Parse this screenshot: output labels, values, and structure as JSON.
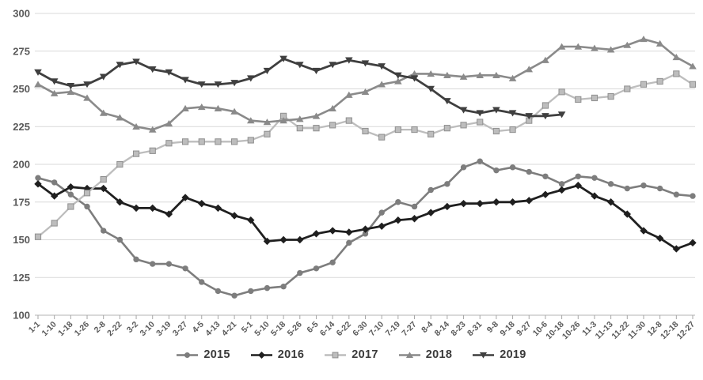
{
  "chart_data": {
    "type": "line",
    "title": "",
    "legend_position": "bottom-center",
    "grid": "horizontal",
    "colors": {
      "background": "#ffffff",
      "gridline": "#d9d9d9",
      "axis_line": "#b3b3b3",
      "tick": "#a6a6a6",
      "axis_text": "#595959",
      "legend_text": "#3a3a3a"
    },
    "y_axis": {
      "min": 100,
      "max": 300,
      "step": 25,
      "tick_labels": [
        "300",
        "275",
        "250",
        "225",
        "200",
        "175",
        "150",
        "125",
        "100"
      ]
    },
    "x_categories": [
      "1-1",
      "1-10",
      "1-18",
      "1-26",
      "2-8",
      "2-22",
      "3-2",
      "3-10",
      "3-19",
      "3-27",
      "4-5",
      "4-13",
      "4-21",
      "5-1",
      "5-10",
      "5-18",
      "5-26",
      "6-5",
      "6-14",
      "6-22",
      "6-30",
      "7-10",
      "7-19",
      "7-27",
      "8-4",
      "8-14",
      "8-23",
      "8-31",
      "9-8",
      "9-18",
      "9-27",
      "10-6",
      "10-18",
      "10-26",
      "11-3",
      "11-13",
      "11-22",
      "11-30",
      "12-8",
      "12-18",
      "12-27"
    ],
    "series": [
      {
        "name": "2015",
        "marker": "circle",
        "color": "#7d7d7d",
        "values": [
          191,
          188,
          180,
          172,
          156,
          150,
          137,
          134,
          134,
          131,
          122,
          116,
          113,
          116,
          118,
          119,
          128,
          131,
          135,
          148,
          154,
          168,
          175,
          172,
          183,
          187,
          198,
          202,
          196,
          198,
          195,
          192,
          187,
          192,
          191,
          187,
          184,
          186,
          184,
          180,
          179
        ]
      },
      {
        "name": "2016",
        "marker": "diamond",
        "color": "#1f1f1f",
        "values": [
          187,
          179,
          185,
          184,
          184,
          175,
          171,
          171,
          167,
          178,
          174,
          171,
          166,
          163,
          149,
          150,
          150,
          154,
          156,
          155,
          157,
          159,
          163,
          164,
          168,
          172,
          174,
          174,
          175,
          175,
          176,
          180,
          183,
          186,
          179,
          175,
          167,
          156,
          151,
          144,
          148
        ]
      },
      {
        "name": "2017",
        "marker": "square",
        "color": "#bdbdbd",
        "marker_border": "#8f8f8f",
        "values": [
          152,
          161,
          172,
          181,
          190,
          200,
          207,
          209,
          214,
          215,
          215,
          215,
          215,
          216,
          220,
          232,
          224,
          224,
          226,
          229,
          222,
          218,
          223,
          223,
          220,
          224,
          226,
          228,
          222,
          223,
          229,
          239,
          248,
          243,
          244,
          245,
          250,
          253,
          255,
          260,
          253
        ]
      },
      {
        "name": "2018",
        "marker": "triangle-up",
        "color": "#8a8a8a",
        "values": [
          253,
          247,
          248,
          244,
          234,
          231,
          225,
          223,
          227,
          237,
          238,
          237,
          235,
          229,
          228,
          229,
          230,
          232,
          237,
          246,
          248,
          253,
          255,
          260,
          260,
          259,
          258,
          259,
          259,
          257,
          263,
          269,
          278,
          278,
          277,
          276,
          279,
          283,
          280,
          271,
          265
        ]
      },
      {
        "name": "2019",
        "marker": "triangle-down",
        "color": "#3f3f3f",
        "values": [
          261,
          255,
          252,
          253,
          258,
          266,
          268,
          263,
          261,
          256,
          253,
          253,
          254,
          257,
          262,
          270,
          266,
          262,
          266,
          269,
          267,
          265,
          259,
          257,
          250,
          242,
          236,
          234,
          236,
          234,
          232,
          232,
          233
        ]
      }
    ]
  }
}
